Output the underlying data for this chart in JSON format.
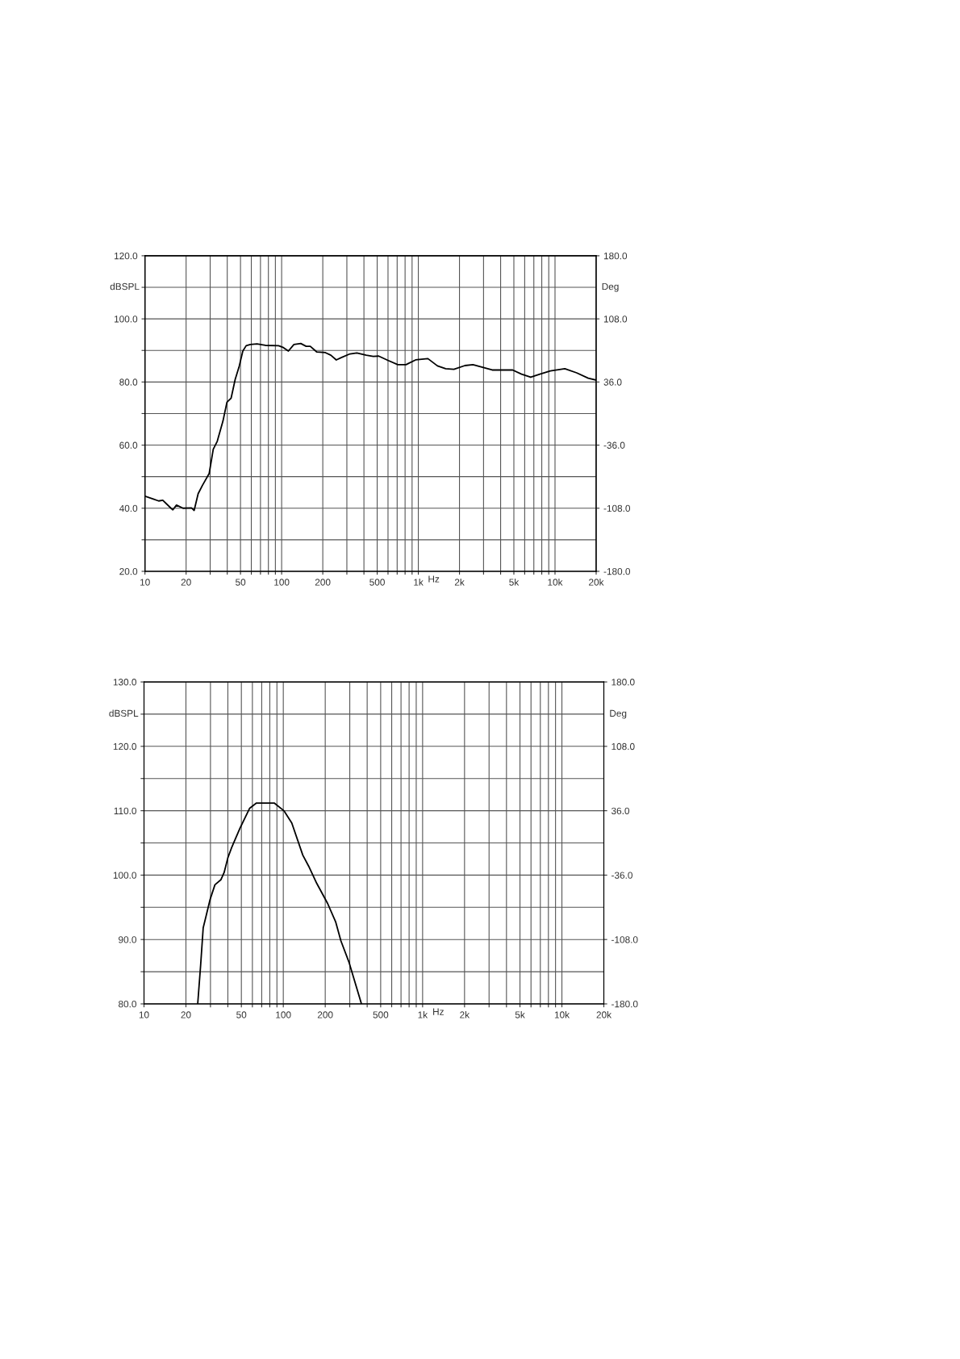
{
  "chart_data": [
    {
      "type": "line",
      "ylabel": "dBSPL",
      "y2label": "Deg",
      "xlabel": "Hz",
      "log": "x",
      "grid": true,
      "legend": false,
      "x": [
        10,
        11.5,
        12.6,
        13.5,
        15.5,
        16,
        17,
        19,
        21.9,
        22.9,
        24.5,
        26.3,
        29.5,
        31.6,
        33.8,
        37.2,
        39.8,
        42.7,
        45.7,
        49,
        52,
        55,
        59,
        66,
        76,
        95,
        102,
        112,
        123,
        138,
        151,
        162,
        181,
        209,
        229,
        251,
        275,
        316,
        355,
        416,
        468,
        513,
        603,
        708,
        813,
        955,
        1175,
        1380,
        1585,
        1820,
        2190,
        2510,
        3470,
        4370,
        4900,
        5690,
        6640,
        7750,
        9240,
        11800,
        14400,
        17500,
        20000
      ],
      "series": [
        {
          "color": "#000000",
          "values": [
            43.8,
            42.9,
            42.3,
            42.5,
            40.0,
            39.5,
            41.0,
            40.0,
            40.1,
            39.3,
            44.6,
            47.2,
            51.0,
            58.7,
            61.2,
            67.6,
            73.6,
            74.9,
            80.8,
            85.1,
            89.8,
            91.5,
            91.9,
            92.1,
            91.6,
            91.5,
            91.0,
            89.8,
            91.9,
            92.2,
            91.3,
            91.3,
            89.5,
            89.3,
            88.5,
            87.0,
            87.8,
            88.9,
            89.2,
            88.5,
            88.1,
            88.2,
            86.8,
            85.5,
            85.5,
            87.0,
            87.4,
            85.1,
            84.2,
            84.0,
            85.2,
            85.5,
            83.8,
            83.8,
            83.8,
            82.5,
            81.5,
            82.5,
            83.5,
            84.2,
            82.9,
            81.2,
            80.6
          ]
        }
      ],
      "xlim": [
        10,
        20000
      ],
      "xticks": [
        {
          "value": 10,
          "label": "10"
        },
        {
          "value": 20,
          "label": "20"
        },
        {
          "value": 30,
          "label": null
        },
        {
          "value": 40,
          "label": null
        },
        {
          "value": 50,
          "label": "50"
        },
        {
          "value": 60,
          "label": null
        },
        {
          "value": 70,
          "label": null
        },
        {
          "value": 80,
          "label": null
        },
        {
          "value": 90,
          "label": null
        },
        {
          "value": 100,
          "label": "100"
        },
        {
          "value": 200,
          "label": "200"
        },
        {
          "value": 300,
          "label": null
        },
        {
          "value": 400,
          "label": null
        },
        {
          "value": 500,
          "label": "500"
        },
        {
          "value": 600,
          "label": null
        },
        {
          "value": 700,
          "label": null
        },
        {
          "value": 800,
          "label": null
        },
        {
          "value": 900,
          "label": null
        },
        {
          "value": 1000,
          "label": "1k"
        },
        {
          "value": 2000,
          "label": "2k"
        },
        {
          "value": 3000,
          "label": null
        },
        {
          "value": 4000,
          "label": null
        },
        {
          "value": 5000,
          "label": "5k"
        },
        {
          "value": 6000,
          "label": null
        },
        {
          "value": 7000,
          "label": null
        },
        {
          "value": 8000,
          "label": null
        },
        {
          "value": 9000,
          "label": null
        },
        {
          "value": 10000,
          "label": "10k"
        },
        {
          "value": 20000,
          "label": "20k"
        }
      ],
      "ylim": [
        20,
        120
      ],
      "yticks": [
        {
          "value": 20,
          "label": "20.0"
        },
        {
          "value": 30,
          "label": null
        },
        {
          "value": 40,
          "label": "40.0"
        },
        {
          "value": 50,
          "label": null
        },
        {
          "value": 60,
          "label": "60.0"
        },
        {
          "value": 70,
          "label": null
        },
        {
          "value": 80,
          "label": "80.0"
        },
        {
          "value": 90,
          "label": null
        },
        {
          "value": 100,
          "label": "100.0"
        },
        {
          "value": 110,
          "label": null
        },
        {
          "value": 120,
          "label": "120.0"
        }
      ],
      "y2lim": [
        -180,
        180
      ],
      "y2ticks": [
        {
          "value": -180,
          "label": "-180.0"
        },
        {
          "value": -108,
          "label": "-108.0"
        },
        {
          "value": -36,
          "label": "-36.0"
        },
        {
          "value": 36,
          "label": "36.0"
        },
        {
          "value": 108,
          "label": "108.0"
        },
        {
          "value": 180,
          "label": "180.0"
        }
      ]
    },
    {
      "type": "line",
      "ylabel": "dBSPL",
      "y2label": "Deg",
      "xlabel": "Hz",
      "log": "x",
      "grid": true,
      "legend": false,
      "x": [
        24.3,
        25.5,
        26.6,
        27.8,
        29.8,
        32.3,
        35.7,
        37.6,
        40,
        42.8,
        48.9,
        57.4,
        64.2,
        70.1,
        86,
        101,
        115,
        138,
        152,
        174,
        208,
        238,
        259,
        297,
        364
      ],
      "series": [
        {
          "color": "#000000",
          "values": [
            80.0,
            86.0,
            91.8,
            93.5,
            96.2,
            98.5,
            99.3,
            100.4,
            102.7,
            104.4,
            107.3,
            110.4,
            111.2,
            111.2,
            111.2,
            110.0,
            108.1,
            103.1,
            101.4,
            98.7,
            95.6,
            92.7,
            89.8,
            86.4,
            80.0
          ]
        }
      ],
      "xlim": [
        10,
        20000
      ],
      "xticks": [
        {
          "value": 10,
          "label": "10"
        },
        {
          "value": 20,
          "label": "20"
        },
        {
          "value": 30,
          "label": null
        },
        {
          "value": 40,
          "label": null
        },
        {
          "value": 50,
          "label": "50"
        },
        {
          "value": 60,
          "label": null
        },
        {
          "value": 70,
          "label": null
        },
        {
          "value": 80,
          "label": null
        },
        {
          "value": 90,
          "label": null
        },
        {
          "value": 100,
          "label": "100"
        },
        {
          "value": 200,
          "label": "200"
        },
        {
          "value": 300,
          "label": null
        },
        {
          "value": 400,
          "label": null
        },
        {
          "value": 500,
          "label": "500"
        },
        {
          "value": 600,
          "label": null
        },
        {
          "value": 700,
          "label": null
        },
        {
          "value": 800,
          "label": null
        },
        {
          "value": 900,
          "label": null
        },
        {
          "value": 1000,
          "label": "1k"
        },
        {
          "value": 2000,
          "label": "2k"
        },
        {
          "value": 3000,
          "label": null
        },
        {
          "value": 4000,
          "label": null
        },
        {
          "value": 5000,
          "label": "5k"
        },
        {
          "value": 6000,
          "label": null
        },
        {
          "value": 7000,
          "label": null
        },
        {
          "value": 8000,
          "label": null
        },
        {
          "value": 9000,
          "label": null
        },
        {
          "value": 10000,
          "label": "10k"
        },
        {
          "value": 20000,
          "label": "20k"
        }
      ],
      "ylim": [
        80,
        130
      ],
      "yticks": [
        {
          "value": 80,
          "label": "80.0"
        },
        {
          "value": 85,
          "label": null
        },
        {
          "value": 90,
          "label": "90.0"
        },
        {
          "value": 95,
          "label": null
        },
        {
          "value": 100,
          "label": "100.0"
        },
        {
          "value": 105,
          "label": null
        },
        {
          "value": 110,
          "label": "110.0"
        },
        {
          "value": 115,
          "label": null
        },
        {
          "value": 120,
          "label": "120.0"
        },
        {
          "value": 125,
          "label": null
        },
        {
          "value": 130,
          "label": "130.0"
        }
      ],
      "y2lim": [
        -180,
        180
      ],
      "y2ticks": [
        {
          "value": -180,
          "label": "-180.0"
        },
        {
          "value": -108,
          "label": "-108.0"
        },
        {
          "value": -36,
          "label": "-36.0"
        },
        {
          "value": 36,
          "label": "36.0"
        },
        {
          "value": 108,
          "label": "108.0"
        },
        {
          "value": 180,
          "label": "180.0"
        }
      ]
    }
  ]
}
